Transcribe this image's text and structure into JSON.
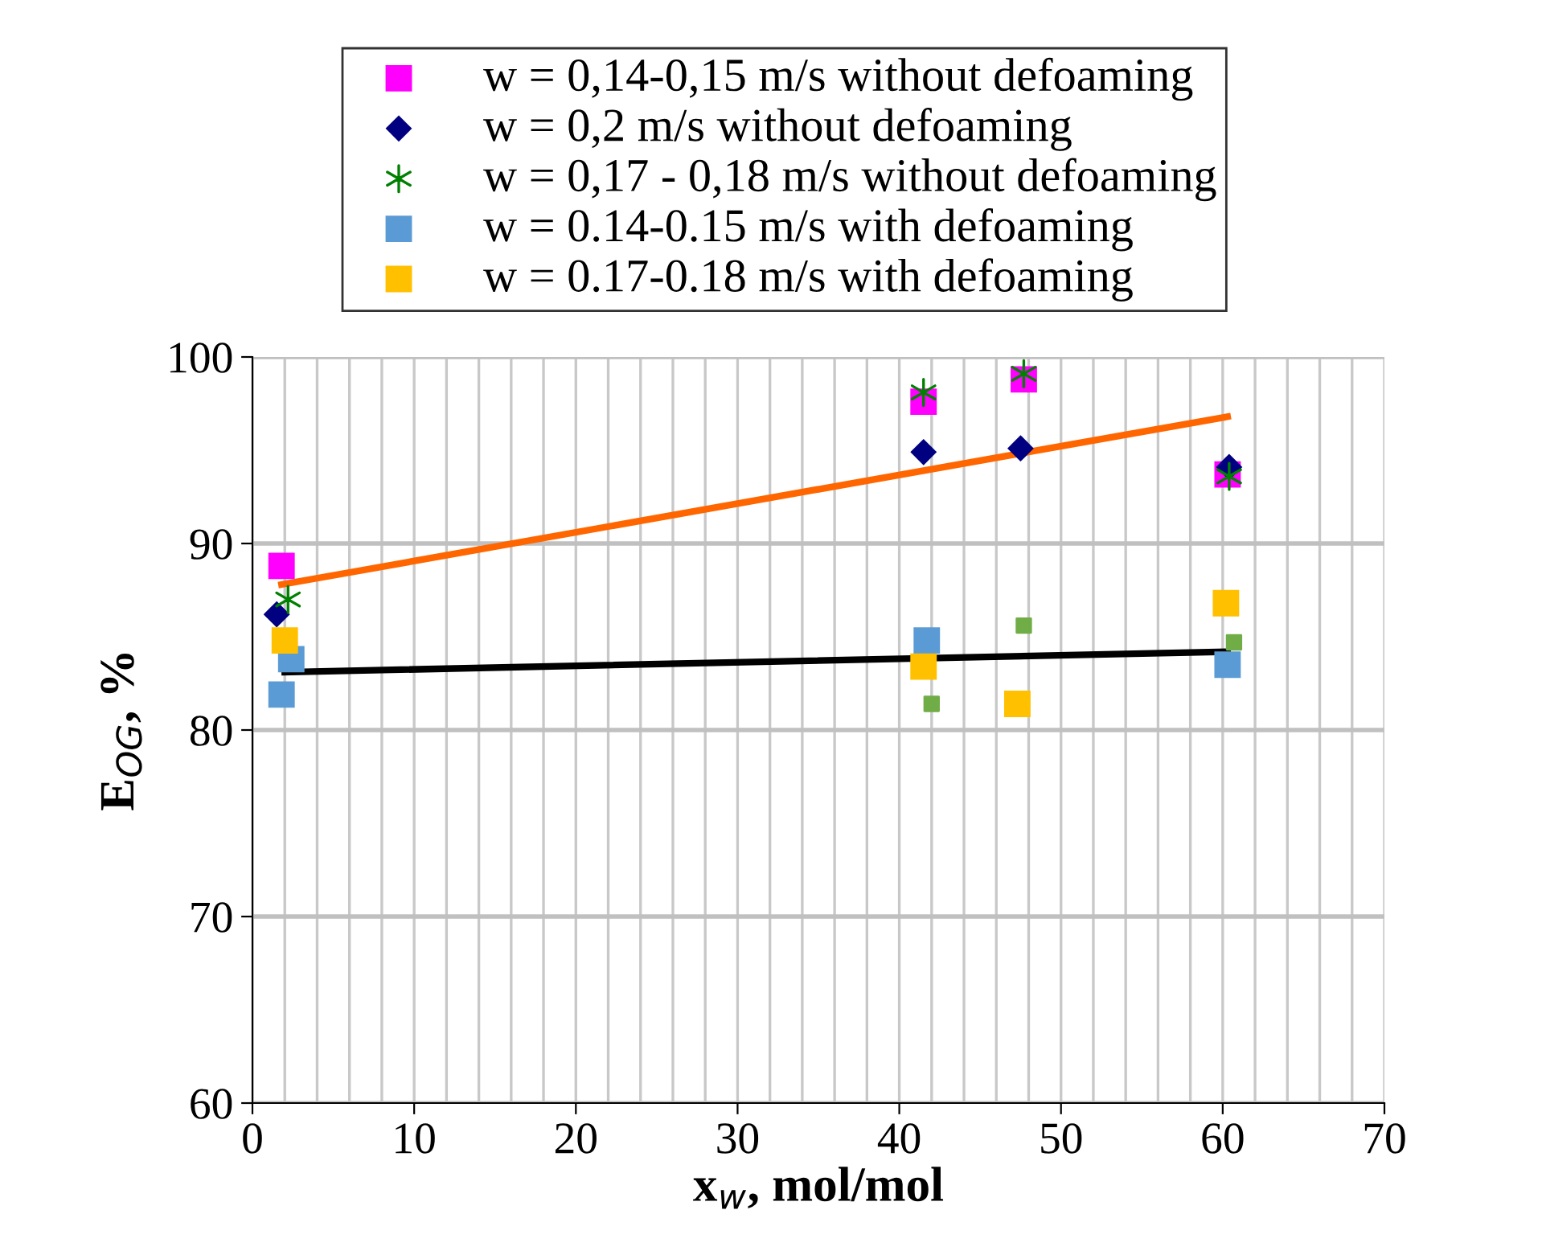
{
  "chart_data": {
    "type": "scatter",
    "xlabel": "x$_{w}$, mol/mol",
    "ylabel": "E$_{OG}$, %",
    "xlim": [
      0,
      70
    ],
    "xticks": [
      0,
      {
        "value": 2,
        "label": null
      },
      {
        "value": 4,
        "label": null
      },
      {
        "value": 6,
        "label": null
      },
      {
        "value": 8,
        "label": null
      },
      10,
      {
        "value": 12,
        "label": null
      },
      {
        "value": 14,
        "label": null
      },
      {
        "value": 16,
        "label": null
      },
      {
        "value": 18,
        "label": null
      },
      20,
      {
        "value": 22,
        "label": null
      },
      {
        "value": 24,
        "label": null
      },
      {
        "value": 26,
        "label": null
      },
      {
        "value": 28,
        "label": null
      },
      30,
      {
        "value": 32,
        "label": null
      },
      {
        "value": 34,
        "label": null
      },
      {
        "value": 36,
        "label": null
      },
      {
        "value": 38,
        "label": null
      },
      40,
      {
        "value": 42,
        "label": null
      },
      {
        "value": 44,
        "label": null
      },
      {
        "value": 46,
        "label": null
      },
      {
        "value": 48,
        "label": null
      },
      50,
      {
        "value": 52,
        "label": null
      },
      {
        "value": 54,
        "label": null
      },
      {
        "value": 56,
        "label": null
      },
      {
        "value": 58,
        "label": null
      },
      60,
      {
        "value": 62,
        "label": null
      },
      {
        "value": 64,
        "label": null
      },
      {
        "value": 66,
        "label": null
      },
      {
        "value": 68,
        "label": null
      },
      70
    ],
    "ylim": [
      60,
      100
    ],
    "yticks": [
      60,
      70,
      80,
      90,
      100
    ],
    "grid": true,
    "legend": "top",
    "series": [
      {
        "name": "w = 0,14-0,15 m/s without defoaming",
        "color": "#ff00ff",
        "marker": "square",
        "x": [
          1.8,
          41.5,
          47.7,
          60.3
        ],
        "values": [
          88.8,
          97.6,
          98.8,
          93.7
        ]
      },
      {
        "name": "w = 0,2 m/s without defoaming",
        "color": "#000080",
        "marker": "diamond",
        "x": [
          1.5,
          41.5,
          47.5,
          60.4
        ],
        "values": [
          86.2,
          94.9,
          95.1,
          94.1
        ]
      },
      {
        "name": "w = 0,17 - 0,18 m/s without defoaming",
        "color": "#008000",
        "marker": "cross",
        "x": [
          2.2,
          41.5,
          47.7,
          60.4
        ],
        "values": [
          87.0,
          98.1,
          99.1,
          93.6
        ]
      },
      {
        "name": "w = 0.14-0.15 m/s with defoaming",
        "color": "#5b9bd5",
        "marker": "square",
        "x": [
          1.8,
          2.4,
          41.7,
          60.3
        ],
        "values": [
          81.9,
          83.8,
          84.8,
          83.5
        ]
      },
      {
        "name": "w = 0.17-0.18 m/s with defoaming",
        "color": "#ffc000",
        "marker": "square",
        "x": [
          2.0,
          41.5,
          47.3,
          60.2
        ],
        "values": [
          84.8,
          83.4,
          81.4,
          86.8
        ]
      },
      {
        "color": "#70ad47",
        "marker": "square",
        "x": [
          42.0,
          47.7,
          60.7
        ],
        "values": [
          81.4,
          85.6,
          84.7
        ]
      },
      {
        "type": "line",
        "color": "#ff6600",
        "x": [
          1.8,
          60.3
        ],
        "values": [
          87.8,
          96.8
        ]
      },
      {
        "type": "line",
        "color": "#000000",
        "x": [
          2.0,
          60.3
        ],
        "values": [
          83.1,
          84.2
        ]
      }
    ]
  }
}
